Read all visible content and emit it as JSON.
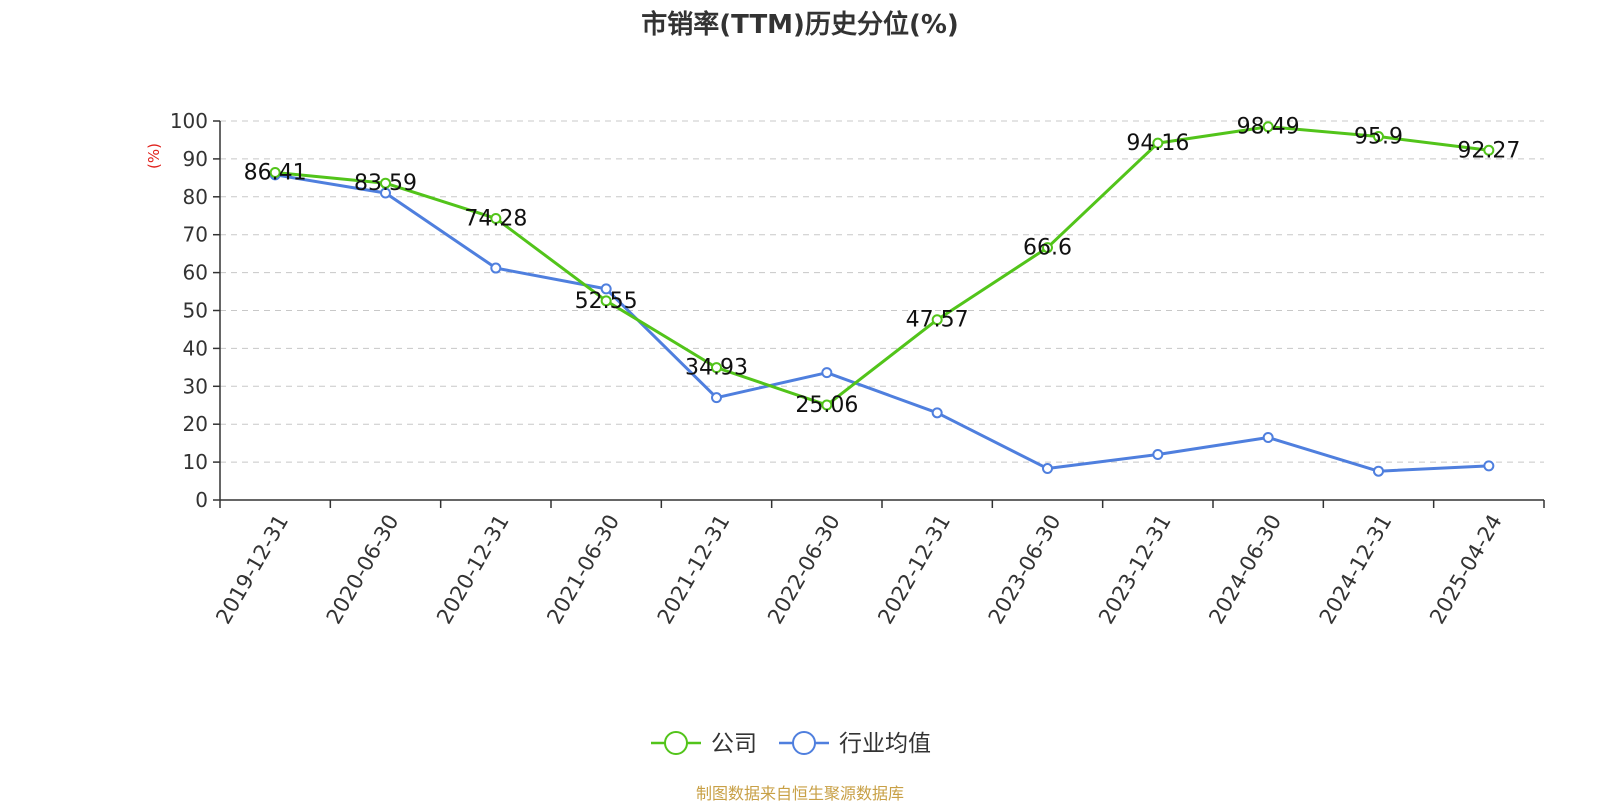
{
  "chart_data": {
    "type": "line",
    "title": "市销率(TTM)历史分位(%)",
    "ylabel": "(%)",
    "xlabel": "",
    "ylim": [
      0,
      100
    ],
    "y_ticks": [
      0,
      10,
      20,
      30,
      40,
      50,
      60,
      70,
      80,
      90,
      100
    ],
    "categories": [
      "2019-12-31",
      "2020-06-30",
      "2020-12-31",
      "2021-06-30",
      "2021-12-31",
      "2022-06-30",
      "2022-12-31",
      "2023-06-30",
      "2023-12-31",
      "2024-06-30",
      "2024-12-31",
      "2025-04-24"
    ],
    "series": [
      {
        "name": "公司",
        "color": "#52c41a",
        "values": [
          86.41,
          83.59,
          74.28,
          52.55,
          34.93,
          25.06,
          47.57,
          66.6,
          94.16,
          98.49,
          95.9,
          92.27
        ],
        "labels": [
          "86.41",
          "83.59",
          "74.28",
          "52.55",
          "34.93",
          "25.06",
          "47.57",
          "66.6",
          "94.16",
          "98.49",
          "95.9",
          "92.27"
        ]
      },
      {
        "name": "行业均值",
        "color": "#4f7fde",
        "values": [
          85.8,
          81,
          61.2,
          55.7,
          27,
          33.6,
          23,
          8.3,
          12,
          16.5,
          7.6,
          9
        ]
      }
    ],
    "grid": true,
    "legend_position": "bottom-center",
    "source": "制图数据来自恒生聚源数据库"
  }
}
